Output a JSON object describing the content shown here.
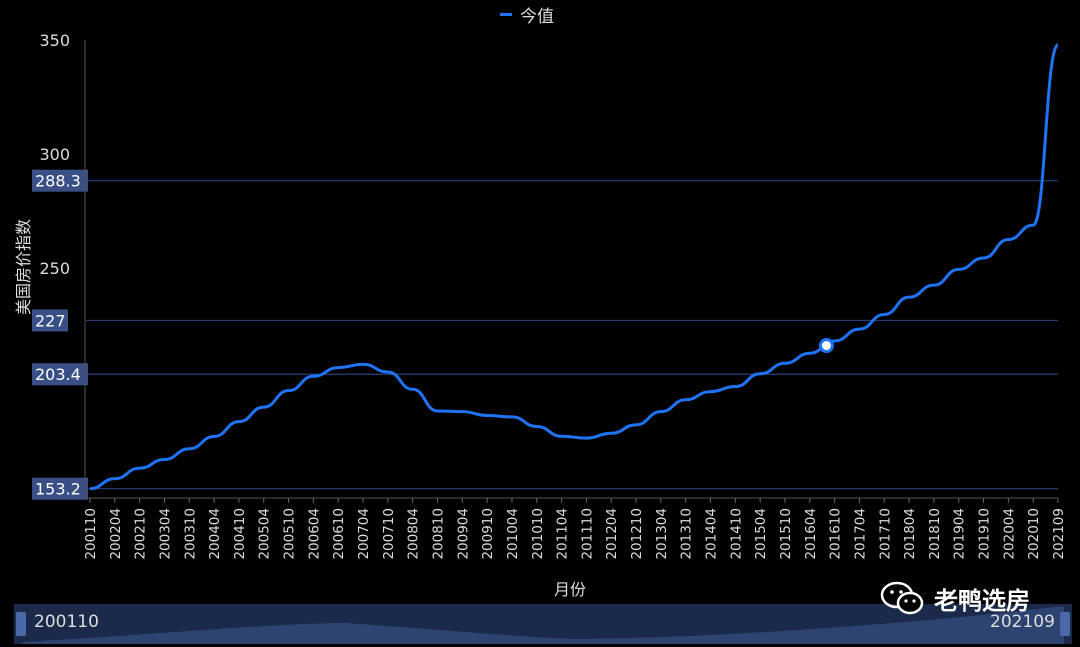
{
  "legend": {
    "series_name": "今值",
    "color": "#1e74f5"
  },
  "axis_titles": {
    "y": "美国房价指数",
    "x": "月份"
  },
  "datazoom": {
    "start_label": "200110",
    "end_label": "202109"
  },
  "watermark": {
    "text": "老鸭选房",
    "icon": "wechat-icon"
  },
  "chart_data": {
    "type": "line",
    "title": "",
    "xlabel": "月份",
    "ylabel": "美国房价指数",
    "ylim": [
      150,
      350
    ],
    "y_ticks": [
      350,
      300,
      250
    ],
    "x_tick_labels": [
      "200110",
      "200204",
      "200210",
      "200304",
      "200310",
      "200404",
      "200410",
      "200504",
      "200510",
      "200604",
      "200610",
      "200704",
      "200710",
      "200804",
      "200810",
      "200904",
      "200910",
      "201004",
      "201010",
      "201104",
      "201110",
      "201204",
      "201210",
      "201304",
      "201310",
      "201404",
      "201410",
      "201504",
      "201510",
      "201604",
      "201610",
      "201704",
      "201710",
      "201804",
      "201810",
      "201904",
      "201910",
      "202004",
      "202010",
      "202109"
    ],
    "series": [
      {
        "name": "今值",
        "color": "#1e74f5",
        "x": [
          "200110",
          "200204",
          "200210",
          "200304",
          "200310",
          "200404",
          "200410",
          "200504",
          "200510",
          "200604",
          "200610",
          "200704",
          "200710",
          "200804",
          "200810",
          "200904",
          "200910",
          "201004",
          "201010",
          "201104",
          "201110",
          "201204",
          "201210",
          "201304",
          "201310",
          "201404",
          "201410",
          "201504",
          "201510",
          "201604",
          "201610",
          "201704",
          "201710",
          "201804",
          "201810",
          "201904",
          "201910",
          "202004",
          "202010",
          "202109"
        ],
        "values": [
          153.2,
          157.6,
          162.2,
          166.0,
          170.7,
          176.1,
          182.6,
          189.0,
          196.2,
          202.5,
          206.3,
          207.8,
          204.4,
          196.8,
          187.3,
          187.0,
          185.3,
          184.7,
          180.5,
          176.2,
          175.4,
          177.5,
          181.2,
          187.0,
          192.2,
          195.8,
          198.0,
          203.6,
          208.2,
          212.6,
          218.0,
          223.2,
          229.6,
          237.2,
          242.5,
          249.4,
          254.4,
          262.5,
          268.8,
          347.8
        ]
      }
    ],
    "mark_lines": [
      {
        "label": "288.3",
        "value": 288.3
      },
      {
        "label": "227",
        "value": 227
      },
      {
        "label": "203.4",
        "value": 203.4
      },
      {
        "label": "153.2",
        "value": 153.2
      }
    ],
    "highlight_point": {
      "x": "201608",
      "value": 216.0
    },
    "grid": false,
    "legend_position": "top-center"
  }
}
